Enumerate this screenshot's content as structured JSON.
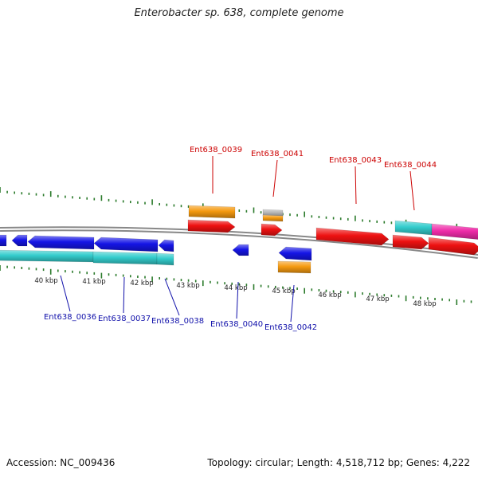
{
  "title": "Enterobacter sp. 638, complete genome",
  "footer": {
    "accession": "Accession: NC_009436",
    "summary": "Topology: circular; Length: 4,518,712 bp; Genes: 4,222"
  },
  "colors": {
    "forward_gene": "#ee1111",
    "reverse_gene": "#1515e6",
    "cds_cyan": "#33cccc",
    "orange_feature": "#f59a10",
    "gray_feature": "#b5b5b5",
    "magenta_feature": "#ee2aa8",
    "tick_green": "#2a7a2a",
    "forward_label": "#cc0000",
    "reverse_label": "#1010aa",
    "backbone": "#888888"
  },
  "axis": {
    "kbp_labels": [
      "40 kbp",
      "41 kbp",
      "42 kbp",
      "43 kbp",
      "44 kbp",
      "45 kbp",
      "46 kbp",
      "47 kbp",
      "48 kbp"
    ]
  },
  "forward_labels": [
    "Ent638_0039",
    "Ent638_0041",
    "Ent638_0043",
    "Ent638_0044"
  ],
  "reverse_labels": [
    "Ent638_0036",
    "Ent638_0037",
    "Ent638_0038",
    "Ent638_0040",
    "Ent638_0042"
  ]
}
